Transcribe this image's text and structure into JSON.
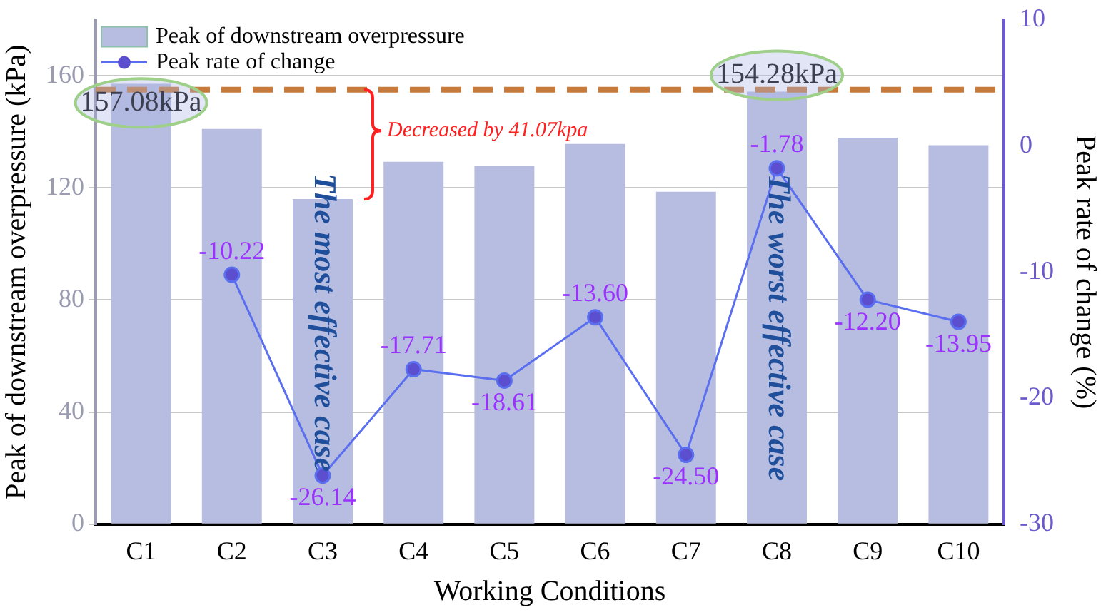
{
  "chart_data": {
    "type": "bar",
    "xlabel": "Working Conditions",
    "ylabel": "Peak of downstream overpressure (kPa)",
    "y2label": "Peak rate of change (%)",
    "categories": [
      "C1",
      "C2",
      "C3",
      "C4",
      "C5",
      "C6",
      "C7",
      "C8",
      "C9",
      "C10"
    ],
    "series": [
      {
        "name": "Peak of downstream overpressure",
        "color": "#b7bde0",
        "values": [
          157.1,
          141.0,
          116.0,
          129.3,
          127.9,
          135.7,
          118.6,
          154.3,
          137.9,
          135.2
        ]
      },
      {
        "name": "Peak rate of change",
        "type": "line",
        "axis": "y2",
        "color": "#5a6ef0",
        "marker": "circle",
        "values": [
          null,
          -10.22,
          -26.14,
          -17.71,
          -18.61,
          -13.6,
          -24.5,
          -1.78,
          -12.2,
          -13.95
        ],
        "value_labels": [
          null,
          "-10.22",
          "-26.14",
          "-17.71",
          "-18.61",
          "-13.60",
          "-24.50",
          "-1.78",
          "-12.20",
          "-13.95"
        ]
      }
    ],
    "ylim": [
      0,
      180
    ],
    "yticks": [
      0,
      40,
      80,
      120,
      160
    ],
    "y2lim": [
      -30,
      10
    ],
    "y2ticks": [
      -30,
      -20,
      -10,
      0,
      10
    ],
    "ref_lines": [
      {
        "axis": "y",
        "value": 155,
        "color": "#c87a3a",
        "line_style": "dashed"
      }
    ],
    "annotations": [
      "157.08kPa",
      "154.28kPa",
      "Decreased by 41.07kpa",
      {
        "text": "The most effective case",
        "x": "C3",
        "y": 116.0
      },
      "The worst effective case"
    ],
    "grid": "y",
    "legend": "top left"
  }
}
